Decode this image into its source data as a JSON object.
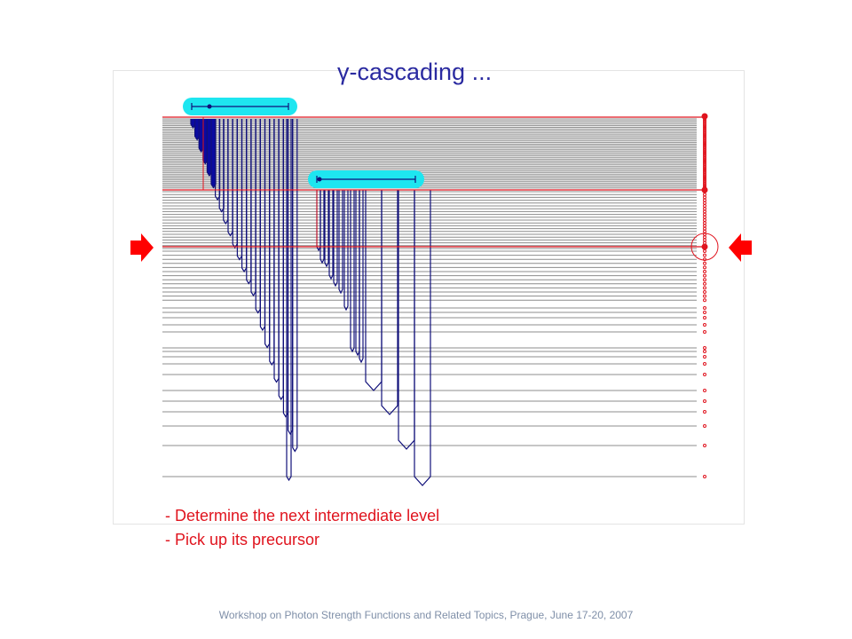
{
  "title": "γ-cascading ...",
  "bullets": [
    "- Determine the next intermediate level",
    "- Pick up its precursor"
  ],
  "footer": "Workshop on Photon Strength Functions and Related Topics, Prague, June 17-20, 2007",
  "colors": {
    "level_line": "#8c8c8c",
    "highlight_level": "#e0141e",
    "gamma_stroke": "#10107a",
    "gamma_fill": "#0a0aa0",
    "selector_bar": "#1ee6f0",
    "arrow": "#ff0000",
    "population_marker": "#e0141e"
  },
  "icons": [
    "right-arrow-icon",
    "left-arrow-icon"
  ]
}
